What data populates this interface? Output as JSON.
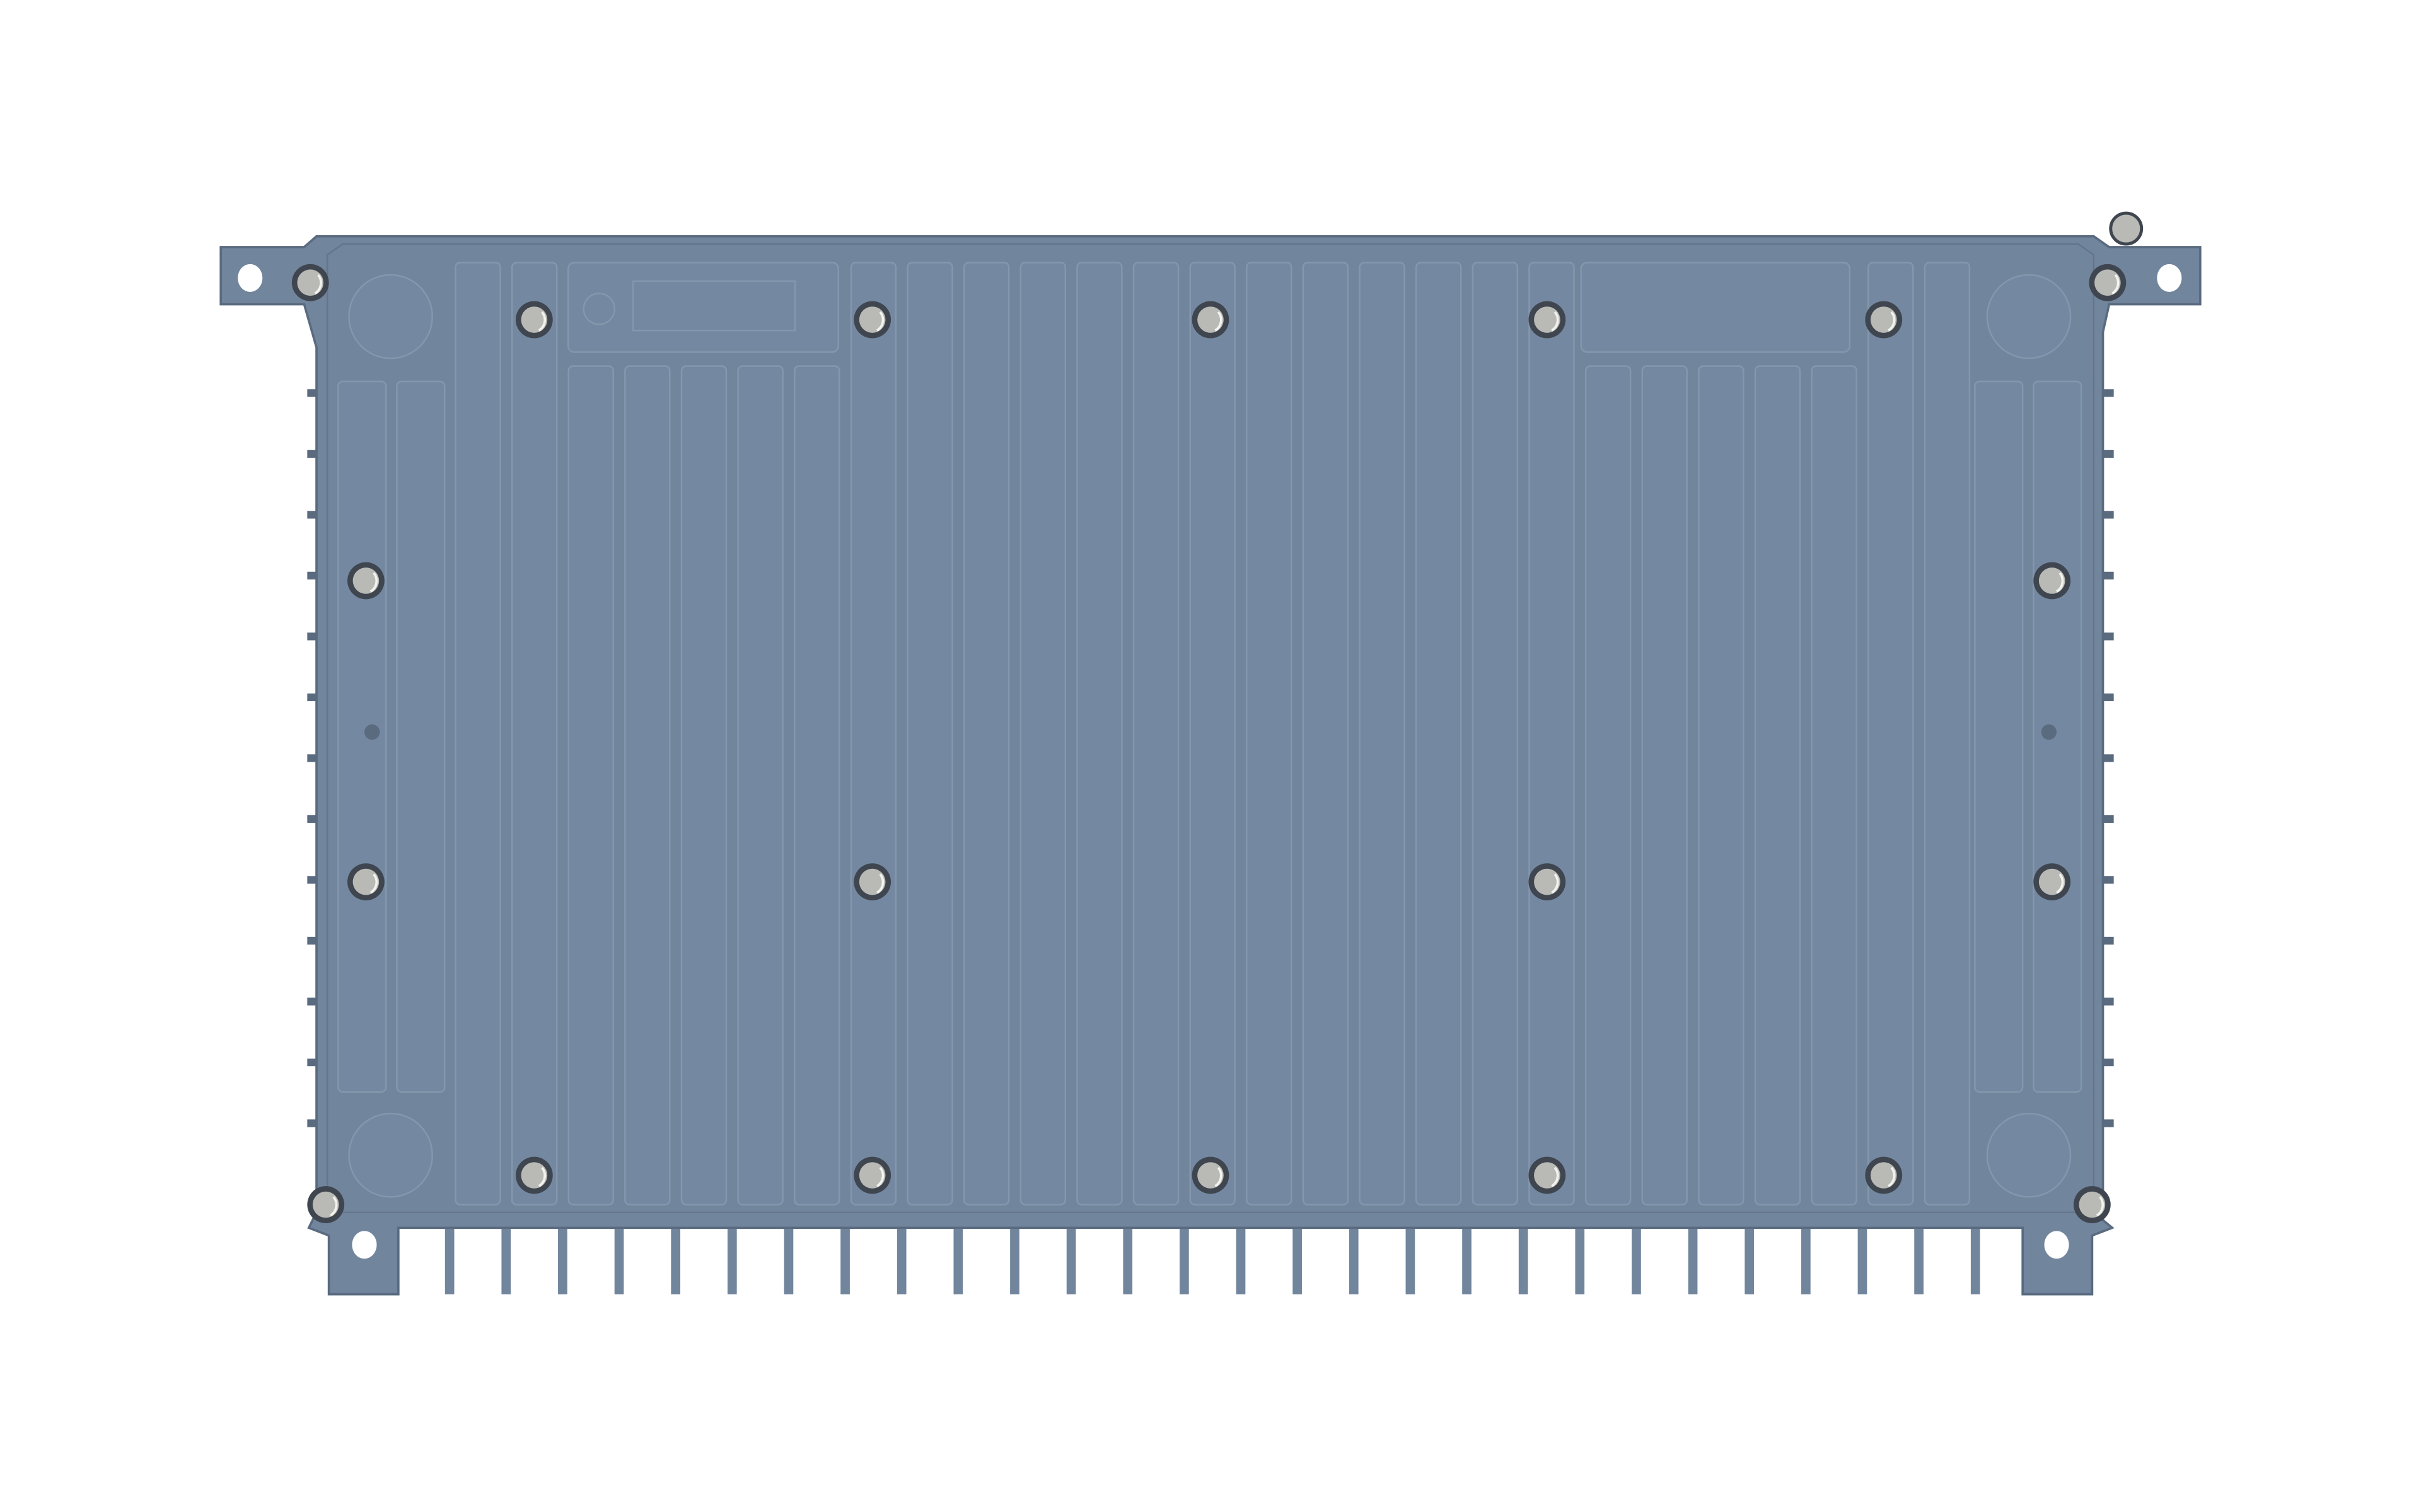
{
  "scene": {
    "subject": "heatsink-enclosure-render",
    "colors": {
      "background": "#ffffff",
      "body": "#71859d",
      "body_edge": "#5a6b80",
      "rib": "#7489a1",
      "rib_line": "#8497ad",
      "screw": "#b9bab5",
      "screw_ring": "#3f4650"
    }
  }
}
